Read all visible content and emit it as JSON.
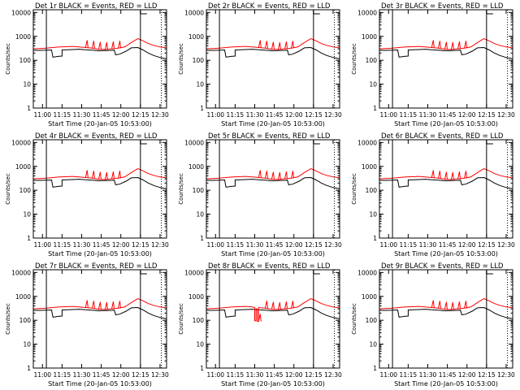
{
  "colors": {
    "events": "#000000",
    "lld": "#ff0000",
    "background": "#ffffff",
    "axes": "#000000"
  },
  "shared": {
    "xlabel": "Start Time (20-Jan-05 10:53:00)",
    "ylabel": "Counts/sec",
    "x_ticks": [
      "11:00",
      "11:15",
      "11:30",
      "11:45",
      "12:00",
      "12:15",
      "12:30"
    ],
    "x_tick_minutes": [
      7,
      22,
      37,
      52,
      67,
      82,
      97
    ],
    "xlim_minutes": [
      0,
      102
    ],
    "y_ticks": [
      "1",
      "10",
      "100",
      "1000",
      "10000"
    ],
    "y_tick_values": [
      1,
      10,
      100,
      1000,
      10000
    ],
    "ylim": [
      1,
      13000
    ],
    "yscale": "log"
  },
  "chart_data": [
    {
      "type": "line",
      "title": "Det 1r BLACK = Events, RED = LLD",
      "detector": "1r",
      "markers_minutes": [
        10,
        82,
        98
      ],
      "series": [
        {
          "name": "Events",
          "color": "#000000",
          "x": [
            0,
            5,
            10,
            14,
            15,
            17,
            19,
            22,
            22,
            30,
            35,
            40,
            45,
            50,
            55,
            60,
            62,
            63,
            66,
            71,
            75,
            80,
            84,
            88,
            92,
            97,
            102
          ],
          "y": [
            260,
            260,
            265,
            270,
            135,
            140,
            145,
            150,
            270,
            280,
            290,
            275,
            265,
            250,
            255,
            260,
            265,
            170,
            180,
            240,
            330,
            340,
            270,
            200,
            160,
            130,
            115
          ]
        },
        {
          "name": "LLD",
          "color": "#ff0000",
          "x": [
            0,
            5,
            10,
            15,
            20,
            25,
            30,
            35,
            40,
            45,
            50,
            55,
            60,
            65,
            70,
            75,
            80,
            84,
            88,
            92,
            97,
            102
          ],
          "y": [
            300,
            310,
            320,
            340,
            360,
            370,
            380,
            360,
            340,
            320,
            290,
            280,
            300,
            320,
            360,
            550,
            800,
            650,
            500,
            420,
            360,
            330
          ]
        }
      ]
    },
    {
      "type": "line",
      "title": "Det 2r BLACK = Events, RED = LLD",
      "detector": "2r",
      "markers_minutes": [
        10,
        82,
        98
      ],
      "series": [
        {
          "name": "Events",
          "color": "#000000",
          "x": [
            0,
            5,
            10,
            14,
            15,
            17,
            19,
            22,
            22,
            30,
            35,
            40,
            45,
            50,
            55,
            60,
            62,
            63,
            66,
            71,
            75,
            80,
            84,
            88,
            92,
            97,
            102
          ],
          "y": [
            260,
            260,
            265,
            270,
            135,
            140,
            145,
            150,
            270,
            280,
            290,
            275,
            265,
            250,
            255,
            260,
            265,
            170,
            180,
            240,
            330,
            340,
            270,
            200,
            160,
            130,
            115
          ]
        },
        {
          "name": "LLD",
          "color": "#ff0000",
          "x": [
            0,
            5,
            10,
            15,
            20,
            25,
            30,
            35,
            40,
            45,
            50,
            55,
            60,
            65,
            70,
            75,
            80,
            84,
            88,
            92,
            97,
            102
          ],
          "y": [
            300,
            310,
            320,
            340,
            360,
            370,
            380,
            360,
            340,
            320,
            290,
            280,
            300,
            320,
            360,
            550,
            800,
            650,
            500,
            420,
            360,
            330
          ]
        }
      ]
    },
    {
      "type": "line",
      "title": "Det 3r BLACK = Events, RED = LLD",
      "detector": "3r",
      "markers_minutes": [
        10,
        82,
        98
      ],
      "series": [
        {
          "name": "Events",
          "color": "#000000",
          "x": [
            0,
            5,
            10,
            14,
            15,
            17,
            19,
            22,
            22,
            30,
            35,
            40,
            45,
            50,
            55,
            60,
            62,
            63,
            66,
            71,
            75,
            80,
            84,
            88,
            92,
            97,
            102
          ],
          "y": [
            260,
            260,
            265,
            270,
            135,
            140,
            145,
            150,
            270,
            280,
            290,
            275,
            265,
            250,
            255,
            260,
            265,
            170,
            180,
            240,
            330,
            340,
            270,
            200,
            160,
            130,
            115
          ]
        },
        {
          "name": "LLD",
          "color": "#ff0000",
          "x": [
            0,
            5,
            10,
            15,
            20,
            25,
            30,
            35,
            40,
            45,
            50,
            55,
            60,
            65,
            70,
            75,
            80,
            84,
            88,
            92,
            97,
            102
          ],
          "y": [
            300,
            310,
            320,
            340,
            360,
            370,
            380,
            360,
            340,
            320,
            290,
            280,
            300,
            320,
            360,
            550,
            800,
            650,
            500,
            420,
            360,
            330
          ]
        }
      ]
    },
    {
      "type": "line",
      "title": "Det 4r BLACK = Events, RED = LLD",
      "detector": "4r",
      "markers_minutes": [
        10,
        82,
        98
      ],
      "series": [
        {
          "name": "Events",
          "color": "#000000",
          "x": [
            0,
            5,
            10,
            14,
            15,
            17,
            19,
            22,
            22,
            30,
            35,
            40,
            45,
            50,
            55,
            60,
            62,
            63,
            66,
            71,
            75,
            80,
            84,
            88,
            92,
            97,
            102
          ],
          "y": [
            260,
            260,
            265,
            270,
            135,
            140,
            145,
            150,
            270,
            280,
            290,
            275,
            265,
            250,
            255,
            260,
            265,
            170,
            180,
            240,
            330,
            340,
            270,
            200,
            160,
            130,
            115
          ]
        },
        {
          "name": "LLD",
          "color": "#ff0000",
          "x": [
            0,
            5,
            10,
            15,
            20,
            25,
            30,
            35,
            40,
            45,
            50,
            55,
            60,
            65,
            70,
            75,
            80,
            84,
            88,
            92,
            97,
            102
          ],
          "y": [
            300,
            310,
            320,
            340,
            360,
            370,
            380,
            360,
            340,
            320,
            290,
            280,
            300,
            320,
            360,
            550,
            800,
            650,
            500,
            420,
            360,
            330
          ]
        }
      ]
    },
    {
      "type": "line",
      "title": "Det 5r BLACK = Events, RED = LLD",
      "detector": "5r",
      "markers_minutes": [
        10,
        82,
        98
      ],
      "series": [
        {
          "name": "Events",
          "color": "#000000",
          "x": [
            0,
            5,
            10,
            14,
            15,
            17,
            19,
            22,
            22,
            30,
            35,
            40,
            45,
            50,
            55,
            60,
            62,
            63,
            66,
            71,
            75,
            80,
            84,
            88,
            92,
            97,
            102
          ],
          "y": [
            260,
            260,
            265,
            270,
            135,
            140,
            145,
            150,
            270,
            280,
            290,
            275,
            265,
            250,
            255,
            260,
            265,
            170,
            180,
            240,
            330,
            340,
            270,
            200,
            160,
            130,
            115
          ]
        },
        {
          "name": "LLD",
          "color": "#ff0000",
          "x": [
            0,
            5,
            10,
            15,
            20,
            25,
            30,
            35,
            40,
            45,
            50,
            55,
            60,
            65,
            70,
            75,
            80,
            84,
            88,
            92,
            97,
            102
          ],
          "y": [
            300,
            310,
            320,
            340,
            360,
            370,
            380,
            360,
            340,
            320,
            290,
            280,
            300,
            320,
            360,
            550,
            800,
            650,
            500,
            420,
            360,
            330
          ]
        }
      ]
    },
    {
      "type": "line",
      "title": "Det 6r BLACK = Events, RED = LLD",
      "detector": "6r",
      "markers_minutes": [
        10,
        82,
        98
      ],
      "series": [
        {
          "name": "Events",
          "color": "#000000",
          "x": [
            0,
            5,
            10,
            14,
            15,
            17,
            19,
            22,
            22,
            30,
            35,
            40,
            45,
            50,
            55,
            60,
            62,
            63,
            66,
            71,
            75,
            80,
            84,
            88,
            92,
            97,
            102
          ],
          "y": [
            260,
            260,
            265,
            270,
            135,
            140,
            145,
            150,
            270,
            280,
            290,
            275,
            265,
            250,
            255,
            260,
            265,
            170,
            180,
            240,
            330,
            340,
            270,
            200,
            160,
            130,
            115
          ]
        },
        {
          "name": "LLD",
          "color": "#ff0000",
          "x": [
            0,
            5,
            10,
            15,
            20,
            25,
            30,
            35,
            40,
            45,
            50,
            55,
            60,
            65,
            70,
            75,
            80,
            84,
            88,
            92,
            97,
            102
          ],
          "y": [
            300,
            310,
            320,
            340,
            360,
            370,
            380,
            360,
            340,
            320,
            290,
            280,
            300,
            320,
            360,
            550,
            800,
            650,
            500,
            420,
            360,
            330
          ]
        }
      ]
    },
    {
      "type": "line",
      "title": "Det 7r BLACK = Events, RED = LLD",
      "detector": "7r",
      "markers_minutes": [
        10,
        82,
        98
      ],
      "series": [
        {
          "name": "Events",
          "color": "#000000",
          "x": [
            0,
            5,
            10,
            14,
            15,
            17,
            19,
            22,
            22,
            30,
            35,
            40,
            45,
            50,
            55,
            60,
            62,
            63,
            66,
            71,
            75,
            80,
            84,
            88,
            92,
            97,
            102
          ],
          "y": [
            260,
            260,
            265,
            270,
            135,
            140,
            145,
            150,
            270,
            280,
            290,
            275,
            265,
            250,
            255,
            260,
            265,
            170,
            180,
            240,
            330,
            340,
            270,
            200,
            160,
            130,
            115
          ]
        },
        {
          "name": "LLD",
          "color": "#ff0000",
          "x": [
            0,
            5,
            10,
            15,
            20,
            25,
            30,
            35,
            40,
            45,
            50,
            55,
            60,
            65,
            70,
            75,
            80,
            84,
            88,
            92,
            97,
            102
          ],
          "y": [
            300,
            310,
            320,
            340,
            360,
            370,
            380,
            360,
            340,
            320,
            290,
            280,
            300,
            320,
            360,
            550,
            800,
            650,
            500,
            420,
            360,
            330
          ]
        }
      ]
    },
    {
      "type": "line",
      "title": "Det 8r BLACK = Events, RED = LLD",
      "detector": "8r",
      "markers_minutes": [
        10,
        82,
        98
      ],
      "series": [
        {
          "name": "Events",
          "color": "#000000",
          "x": [
            0,
            5,
            10,
            14,
            15,
            17,
            19,
            22,
            22,
            30,
            35,
            40,
            45,
            50,
            55,
            60,
            62,
            63,
            66,
            71,
            75,
            80,
            84,
            88,
            92,
            97,
            102
          ],
          "y": [
            260,
            260,
            265,
            270,
            135,
            140,
            145,
            150,
            270,
            280,
            290,
            275,
            265,
            250,
            255,
            260,
            265,
            170,
            180,
            240,
            330,
            340,
            270,
            200,
            160,
            130,
            115
          ]
        },
        {
          "name": "LLD",
          "color": "#ff0000",
          "x": [
            0,
            5,
            10,
            15,
            20,
            25,
            30,
            35,
            37,
            37,
            38,
            38,
            39,
            39,
            40,
            40,
            45,
            50,
            55,
            60,
            65,
            70,
            75,
            80,
            84,
            88,
            92,
            97,
            102
          ],
          "y": [
            300,
            310,
            320,
            340,
            360,
            370,
            380,
            360,
            340,
            95,
            95,
            300,
            300,
            90,
            90,
            340,
            320,
            290,
            280,
            300,
            320,
            360,
            550,
            800,
            650,
            500,
            420,
            360,
            330
          ]
        }
      ]
    },
    {
      "type": "line",
      "title": "Det 9r BLACK = Events, RED = LLD",
      "detector": "9r",
      "markers_minutes": [
        10,
        82,
        98
      ],
      "series": [
        {
          "name": "Events",
          "color": "#000000",
          "x": [
            0,
            5,
            10,
            14,
            15,
            17,
            19,
            22,
            22,
            30,
            35,
            40,
            45,
            50,
            55,
            60,
            62,
            63,
            66,
            71,
            75,
            80,
            84,
            88,
            92,
            97,
            102
          ],
          "y": [
            260,
            260,
            265,
            270,
            135,
            140,
            145,
            150,
            270,
            280,
            290,
            275,
            265,
            250,
            255,
            260,
            265,
            170,
            180,
            240,
            330,
            340,
            270,
            200,
            160,
            130,
            115
          ]
        },
        {
          "name": "LLD",
          "color": "#ff0000",
          "x": [
            0,
            5,
            10,
            15,
            20,
            25,
            30,
            35,
            40,
            45,
            50,
            55,
            60,
            65,
            70,
            75,
            80,
            84,
            88,
            92,
            97,
            102
          ],
          "y": [
            300,
            310,
            320,
            340,
            360,
            370,
            380,
            360,
            340,
            320,
            290,
            280,
            300,
            320,
            360,
            550,
            800,
            650,
            500,
            420,
            360,
            330
          ]
        }
      ]
    }
  ]
}
